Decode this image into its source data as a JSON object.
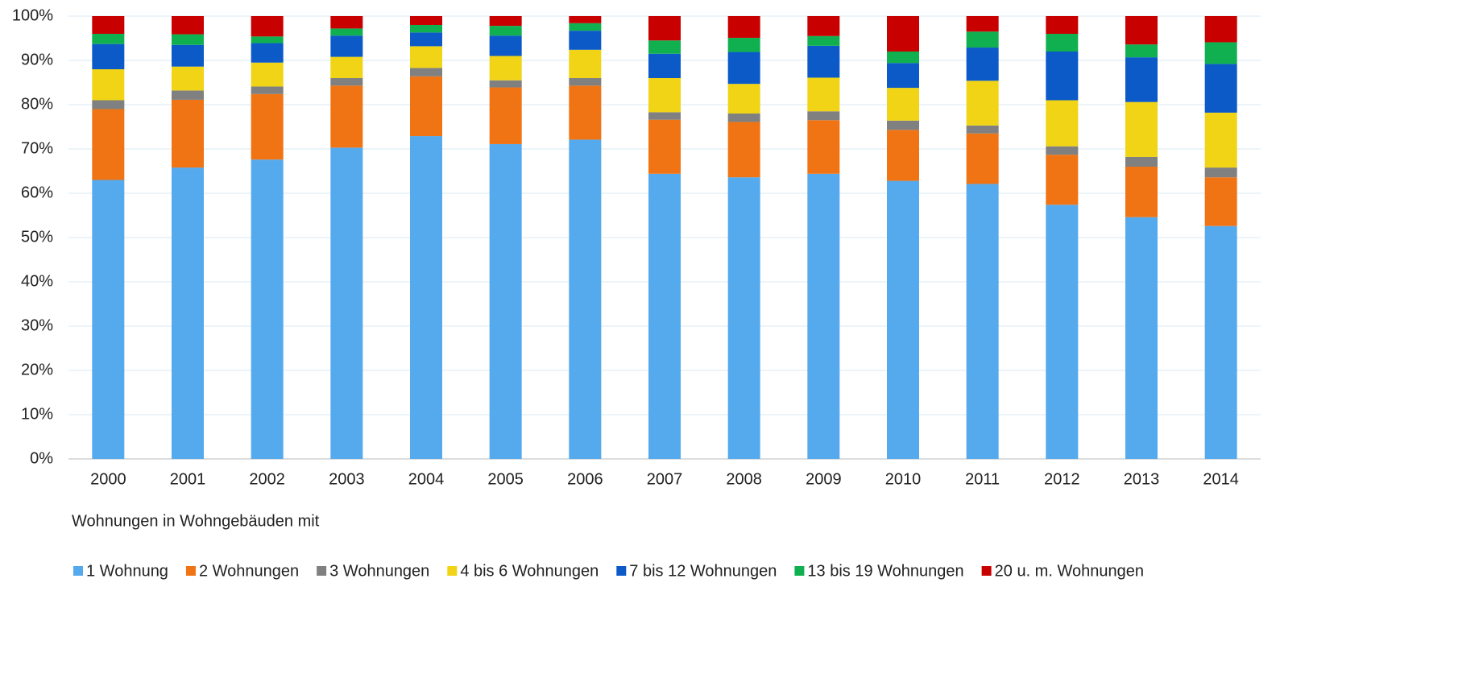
{
  "chart_data": {
    "type": "stacked_bar",
    "xlabel": "Wohnungen in Wohngebäuden mit",
    "categories": [
      "2000",
      "2001",
      "2002",
      "2003",
      "2004",
      "2005",
      "2006",
      "2007",
      "2008",
      "2009",
      "2010",
      "2011",
      "2012",
      "2013",
      "2014"
    ],
    "series": [
      {
        "name": "1 Wohnung",
        "color": "#55aaee",
        "values": [
          63,
          65.8,
          67.6,
          70.3,
          72.9,
          71.1,
          72.1,
          64.4,
          63.6,
          64.4,
          62.8,
          62.1,
          57.4,
          54.6,
          52.6
        ]
      },
      {
        "name": "2 Wohnungen",
        "color": "#f07414",
        "values": [
          16,
          15.3,
          14.8,
          14.0,
          13.5,
          12.8,
          12.2,
          12.2,
          12.5,
          12.1,
          11.5,
          11.4,
          11.3,
          11.4,
          11.0
        ]
      },
      {
        "name": "3 Wohnungen",
        "color": "#808080",
        "values": [
          2,
          2.1,
          1.7,
          1.7,
          1.9,
          1.6,
          1.7,
          1.7,
          1.9,
          2.0,
          2.1,
          1.8,
          1.9,
          2.2,
          2.2
        ]
      },
      {
        "name": "4 bis 6 Wohnungen",
        "color": "#f0d415",
        "values": [
          7,
          5.4,
          5.4,
          4.8,
          4.9,
          5.5,
          6.4,
          7.7,
          6.7,
          7.6,
          7.4,
          10.1,
          10.4,
          12.4,
          12.4
        ]
      },
      {
        "name": "7 bis 12 Wohnungen",
        "color": "#0b5ac8",
        "values": [
          5.7,
          4.9,
          4.4,
          4.8,
          3.1,
          4.6,
          4.3,
          5.5,
          7.2,
          7.2,
          5.6,
          7.5,
          11.0,
          10.1,
          11.0
        ]
      },
      {
        "name": "13 bis 19 Wohnungen",
        "color": "#10b050",
        "values": [
          2.3,
          2.4,
          1.5,
          1.6,
          1.7,
          2.2,
          1.7,
          3.0,
          3.2,
          2.2,
          2.6,
          3.6,
          4.0,
          2.9,
          4.9
        ]
      },
      {
        "name": "20 u. m. Wohnungen",
        "color": "#c80000",
        "values": [
          4,
          4.1,
          4.6,
          2.8,
          2.0,
          2.2,
          1.6,
          5.5,
          4.9,
          4.5,
          8.0,
          3.5,
          4.0,
          6.4,
          5.9
        ]
      }
    ],
    "ylim": [
      0,
      100
    ],
    "yticks": [
      {
        "value": 0,
        "label": "0%"
      },
      {
        "value": 10,
        "label": "10%"
      },
      {
        "value": 20,
        "label": "20%"
      },
      {
        "value": 30,
        "label": "30%"
      },
      {
        "value": 40,
        "label": "40%"
      },
      {
        "value": 50,
        "label": "50%"
      },
      {
        "value": 60,
        "label": "60%"
      },
      {
        "value": 70,
        "label": "70%"
      },
      {
        "value": 80,
        "label": "80%"
      },
      {
        "value": 90,
        "label": "90%"
      },
      {
        "value": 100,
        "label": "100%"
      }
    ],
    "grid": true,
    "legend": "bottom"
  }
}
